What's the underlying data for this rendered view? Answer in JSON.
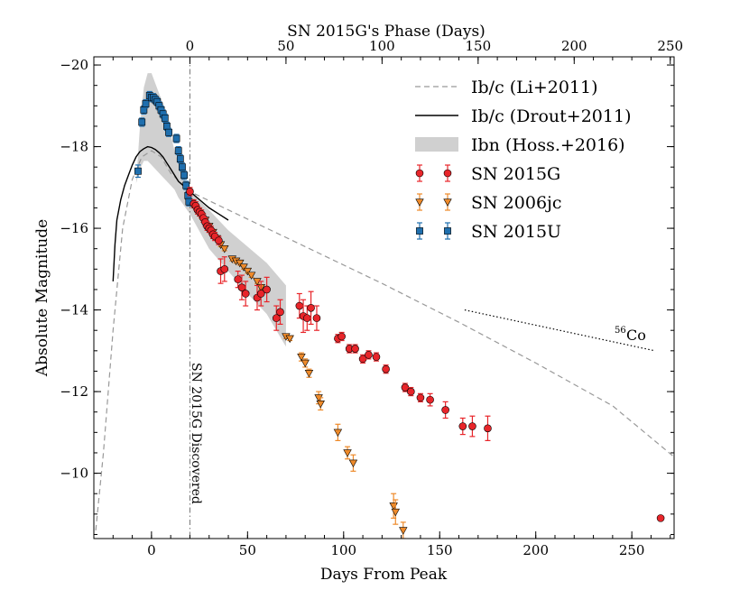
{
  "chart_data": {
    "type": "scatter",
    "xlabel": "Days From Peak",
    "ylabel": "Absolute Magnitude",
    "top_xlabel": "SN 2015G's Phase (Days)",
    "xlim": [
      -30,
      272
    ],
    "ylim": [
      -8.4,
      -20.2
    ],
    "x_ticks": [
      {
        "value": 0,
        "label": "0"
      },
      {
        "value": 50,
        "label": "50"
      },
      {
        "value": 100,
        "label": "100"
      },
      {
        "value": 150,
        "label": "150"
      },
      {
        "value": 200,
        "label": "200"
      },
      {
        "value": 250,
        "label": "250"
      }
    ],
    "top_ticks": [
      {
        "value": 0,
        "label": "0"
      },
      {
        "value": 50,
        "label": "50"
      },
      {
        "value": 100,
        "label": "100"
      },
      {
        "value": 150,
        "label": "150"
      },
      {
        "value": 200,
        "label": "200"
      },
      {
        "value": 250,
        "label": "250"
      }
    ],
    "top_axis_offset_days": 20,
    "y_ticks": [
      {
        "value": -20,
        "label": "−20"
      },
      {
        "value": -18,
        "label": "−18"
      },
      {
        "value": -16,
        "label": "−16"
      },
      {
        "value": -14,
        "label": "−14"
      },
      {
        "value": -12,
        "label": "−12"
      },
      {
        "value": -10,
        "label": "−10"
      }
    ],
    "discovery_day": 20,
    "discovery_label": "SN 2015G Discovered",
    "co56": {
      "label": "Co",
      "superscript": "56",
      "x": [
        163,
        262
      ],
      "y": [
        -14.0,
        -13.0
      ]
    },
    "legend": {
      "position": "top-right",
      "entries": [
        {
          "key": "li",
          "label": "Ib/c (Li+2011)",
          "style": "dashed-line"
        },
        {
          "key": "drout",
          "label": "Ib/c (Drout+2011)",
          "style": "solid-line"
        },
        {
          "key": "hoss",
          "label": "Ibn (Hoss.+2016)",
          "style": "band"
        },
        {
          "key": "g15",
          "label": "SN 2015G",
          "style": "circle"
        },
        {
          "key": "jc06",
          "label": "SN 2006jc",
          "style": "triangle"
        },
        {
          "key": "u15",
          "label": "SN 2015U",
          "style": "square"
        }
      ]
    },
    "colors": {
      "g15_fill": "#e8252a",
      "g15_err": "#e8252a",
      "jc06_fill": "#ee8a2a",
      "jc06_err": "#ee8a2a",
      "u15_fill": "#1f6fae",
      "u15_err": "#1f6fae",
      "li_line": "#999999",
      "drout_line": "#000000",
      "hoss_band": "#d0d0d0"
    },
    "li_template": {
      "x": [
        -29,
        -25,
        -20,
        -15,
        -10,
        -5,
        0,
        5,
        10,
        20,
        40,
        80,
        120,
        160,
        200,
        240,
        272
      ],
      "y": [
        -8.6,
        -10.5,
        -13.5,
        -16.0,
        -17.2,
        -17.75,
        -17.9,
        -17.75,
        -17.35,
        -16.9,
        -16.45,
        -15.55,
        -14.65,
        -13.7,
        -12.7,
        -11.65,
        -10.4
      ]
    },
    "drout_template": {
      "x": [
        -20,
        -19,
        -18,
        -16,
        -14,
        -12,
        -10,
        -8,
        -6,
        -4,
        -2,
        0,
        2,
        4,
        6,
        8,
        10,
        14,
        20,
        25,
        30,
        35,
        40
      ],
      "y": [
        -14.7,
        -15.6,
        -16.2,
        -16.7,
        -17.05,
        -17.3,
        -17.55,
        -17.75,
        -17.88,
        -17.95,
        -18.0,
        -17.98,
        -17.93,
        -17.85,
        -17.75,
        -17.6,
        -17.45,
        -17.15,
        -16.9,
        -16.7,
        -16.5,
        -16.35,
        -16.2
      ]
    },
    "hoss_band": {
      "upper": {
        "x": [
          -8,
          -6,
          -4,
          -2,
          0,
          2,
          4,
          6,
          8,
          10,
          12,
          14,
          20,
          30,
          40,
          50,
          60,
          70
        ],
        "y": [
          -17.1,
          -18.5,
          -19.45,
          -19.8,
          -19.8,
          -19.55,
          -19.3,
          -19.05,
          -18.7,
          -18.3,
          -17.9,
          -17.6,
          -16.9,
          -16.45,
          -15.95,
          -15.55,
          -15.15,
          -14.6
        ]
      },
      "lower": {
        "x": [
          70,
          60,
          50,
          40,
          30,
          20,
          14,
          12,
          10,
          8,
          6,
          4,
          2,
          0,
          -2,
          -4,
          -6,
          -8
        ],
        "y": [
          -13.1,
          -13.9,
          -14.4,
          -14.95,
          -15.5,
          -16.35,
          -16.75,
          -16.95,
          -17.05,
          -17.15,
          -17.25,
          -17.35,
          -17.45,
          -17.55,
          -17.65,
          -17.65,
          -17.45,
          -17.1
        ]
      }
    },
    "series": [
      {
        "key": "g15",
        "name": "SN 2015G",
        "marker": "circle",
        "points": [
          {
            "x": 20,
            "y": -16.9,
            "err": 0.1
          },
          {
            "x": 22,
            "y": -16.6,
            "err": 0.1
          },
          {
            "x": 23,
            "y": -16.55,
            "err": 0.1
          },
          {
            "x": 24,
            "y": -16.45,
            "err": 0.1
          },
          {
            "x": 25,
            "y": -16.4,
            "err": 0.1
          },
          {
            "x": 26,
            "y": -16.35,
            "err": 0.1
          },
          {
            "x": 27,
            "y": -16.25,
            "err": 0.1
          },
          {
            "x": 28,
            "y": -16.15,
            "err": 0.1
          },
          {
            "x": 29,
            "y": -16.05,
            "err": 0.1
          },
          {
            "x": 30,
            "y": -16.0,
            "err": 0.1
          },
          {
            "x": 31,
            "y": -15.95,
            "err": 0.1
          },
          {
            "x": 32,
            "y": -15.85,
            "err": 0.1
          },
          {
            "x": 33,
            "y": -15.8,
            "err": 0.1
          },
          {
            "x": 35,
            "y": -15.7,
            "err": 0.1
          },
          {
            "x": 36,
            "y": -14.95,
            "err": 0.3
          },
          {
            "x": 38,
            "y": -15.0,
            "err": 0.3
          },
          {
            "x": 45,
            "y": -14.75,
            "err": 0.2
          },
          {
            "x": 47,
            "y": -14.55,
            "err": 0.3
          },
          {
            "x": 49,
            "y": -14.4,
            "err": 0.3
          },
          {
            "x": 55,
            "y": -14.3,
            "err": 0.3
          },
          {
            "x": 57,
            "y": -14.4,
            "err": 0.3
          },
          {
            "x": 60,
            "y": -14.5,
            "err": 0.3
          },
          {
            "x": 65,
            "y": -13.8,
            "err": 0.3
          },
          {
            "x": 67,
            "y": -13.95,
            "err": 0.3
          },
          {
            "x": 77,
            "y": -14.1,
            "err": 0.3
          },
          {
            "x": 79,
            "y": -13.85,
            "err": 0.4
          },
          {
            "x": 81,
            "y": -13.8,
            "err": 0.3
          },
          {
            "x": 83,
            "y": -14.05,
            "err": 0.4
          },
          {
            "x": 86,
            "y": -13.8,
            "err": 0.3
          },
          {
            "x": 97,
            "y": -13.3,
            "err": 0.1
          },
          {
            "x": 99,
            "y": -13.35,
            "err": 0.1
          },
          {
            "x": 103,
            "y": -13.05,
            "err": 0.1
          },
          {
            "x": 106,
            "y": -13.05,
            "err": 0.1
          },
          {
            "x": 110,
            "y": -12.8,
            "err": 0.1
          },
          {
            "x": 113,
            "y": -12.9,
            "err": 0.1
          },
          {
            "x": 117,
            "y": -12.85,
            "err": 0.1
          },
          {
            "x": 122,
            "y": -12.55,
            "err": 0.1
          },
          {
            "x": 132,
            "y": -12.1,
            "err": 0.1
          },
          {
            "x": 135,
            "y": -12.0,
            "err": 0.1
          },
          {
            "x": 140,
            "y": -11.85,
            "err": 0.1
          },
          {
            "x": 145,
            "y": -11.8,
            "err": 0.15
          },
          {
            "x": 153,
            "y": -11.55,
            "err": 0.2
          },
          {
            "x": 162,
            "y": -11.15,
            "err": 0.2
          },
          {
            "x": 167,
            "y": -11.15,
            "err": 0.25
          },
          {
            "x": 175,
            "y": -11.1,
            "err": 0.3
          },
          {
            "x": 265,
            "y": -8.9,
            "err": 0.05
          }
        ]
      },
      {
        "key": "jc06",
        "name": "SN 2006jc",
        "marker": "triangle",
        "points": [
          {
            "x": 26,
            "y": -16.3,
            "err": 0.05
          },
          {
            "x": 28,
            "y": -16.2,
            "err": 0.05
          },
          {
            "x": 30,
            "y": -16.05,
            "err": 0.05
          },
          {
            "x": 32,
            "y": -15.9,
            "err": 0.05
          },
          {
            "x": 34,
            "y": -15.75,
            "err": 0.05
          },
          {
            "x": 36,
            "y": -15.6,
            "err": 0.05
          },
          {
            "x": 38,
            "y": -15.5,
            "err": 0.05
          },
          {
            "x": 42,
            "y": -15.25,
            "err": 0.05
          },
          {
            "x": 44,
            "y": -15.2,
            "err": 0.05
          },
          {
            "x": 46,
            "y": -15.15,
            "err": 0.05
          },
          {
            "x": 48,
            "y": -15.05,
            "err": 0.05
          },
          {
            "x": 50,
            "y": -14.95,
            "err": 0.05
          },
          {
            "x": 52,
            "y": -14.85,
            "err": 0.05
          },
          {
            "x": 55,
            "y": -14.7,
            "err": 0.05
          },
          {
            "x": 57,
            "y": -14.55,
            "err": 0.05
          },
          {
            "x": 70,
            "y": -13.35,
            "err": 0.05
          },
          {
            "x": 72,
            "y": -13.3,
            "err": 0.05
          },
          {
            "x": 78,
            "y": -12.85,
            "err": 0.1
          },
          {
            "x": 80,
            "y": -12.7,
            "err": 0.1
          },
          {
            "x": 82,
            "y": -12.45,
            "err": 0.1
          },
          {
            "x": 87,
            "y": -11.85,
            "err": 0.15
          },
          {
            "x": 88,
            "y": -11.7,
            "err": 0.15
          },
          {
            "x": 97,
            "y": -11.0,
            "err": 0.2
          },
          {
            "x": 102,
            "y": -10.5,
            "err": 0.15
          },
          {
            "x": 105,
            "y": -10.25,
            "err": 0.2
          },
          {
            "x": 126,
            "y": -9.2,
            "err": 0.3
          },
          {
            "x": 127,
            "y": -9.05,
            "err": 0.3
          },
          {
            "x": 131,
            "y": -8.6,
            "err": 0.2
          }
        ]
      },
      {
        "key": "u15",
        "name": "SN 2015U",
        "marker": "square",
        "points": [
          {
            "x": -7,
            "y": -17.4,
            "err": 0.15
          },
          {
            "x": -5,
            "y": -18.6,
            "err": 0.1
          },
          {
            "x": -4,
            "y": -18.9,
            "err": 0.1
          },
          {
            "x": -3,
            "y": -19.05,
            "err": 0.1
          },
          {
            "x": -1,
            "y": -19.25,
            "err": 0.1
          },
          {
            "x": 0,
            "y": -19.2,
            "err": 0.1
          },
          {
            "x": 1,
            "y": -19.2,
            "err": 0.1
          },
          {
            "x": 2,
            "y": -19.15,
            "err": 0.1
          },
          {
            "x": 3,
            "y": -19.1,
            "err": 0.1
          },
          {
            "x": 4,
            "y": -19.0,
            "err": 0.1
          },
          {
            "x": 5,
            "y": -18.9,
            "err": 0.1
          },
          {
            "x": 6,
            "y": -18.8,
            "err": 0.1
          },
          {
            "x": 7,
            "y": -18.7,
            "err": 0.1
          },
          {
            "x": 8,
            "y": -18.5,
            "err": 0.1
          },
          {
            "x": 9,
            "y": -18.35,
            "err": 0.1
          },
          {
            "x": 13,
            "y": -18.2,
            "err": 0.1
          },
          {
            "x": 14,
            "y": -17.9,
            "err": 0.1
          },
          {
            "x": 15,
            "y": -17.7,
            "err": 0.1
          },
          {
            "x": 16,
            "y": -17.5,
            "err": 0.1
          },
          {
            "x": 17,
            "y": -17.3,
            "err": 0.1
          },
          {
            "x": 18,
            "y": -17.05,
            "err": 0.1
          },
          {
            "x": 19,
            "y": -16.8,
            "err": 0.1
          },
          {
            "x": 19.5,
            "y": -16.65,
            "err": 0.1
          }
        ]
      }
    ]
  }
}
